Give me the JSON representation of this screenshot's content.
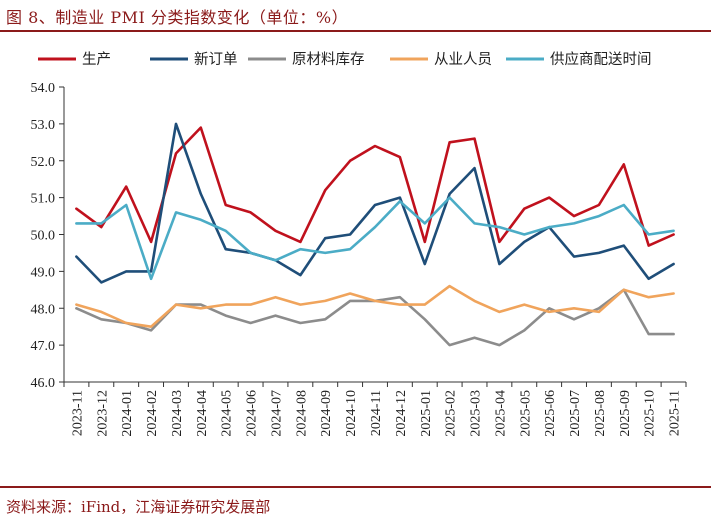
{
  "figure": {
    "title": "图 8、制造业 PMI 分类指数变化（单位：%）",
    "source": "资料来源：iFind，江海证券研究发展部"
  },
  "chart_data": {
    "type": "line",
    "title": "制造业 PMI 分类指数变化（单位：%）",
    "xlabel": "",
    "ylabel": "",
    "ylim": [
      46.0,
      54.0
    ],
    "yticks": [
      "54.0",
      "53.0",
      "52.0",
      "51.0",
      "50.0",
      "49.0",
      "48.0",
      "47.0",
      "46.0"
    ],
    "grid": false,
    "legend_position": "top",
    "categories": [
      "2023-11",
      "2023-12",
      "2024-01",
      "2024-02",
      "2024-03",
      "2024-04",
      "2024-05",
      "2024-06",
      "2024-07",
      "2024-08",
      "2024-09",
      "2024-10",
      "2024-11",
      "2024-12",
      "2025-01",
      "2025-02",
      "2025-03",
      "2025-04",
      "2025-05",
      "2025-06",
      "2025-07",
      "2025-08",
      "2025-09",
      "2025-10",
      "2025-11"
    ],
    "series": [
      {
        "name": "生产",
        "color": "#c0111d",
        "values": [
          50.7,
          50.2,
          51.3,
          49.8,
          52.2,
          52.9,
          50.8,
          50.6,
          50.1,
          49.8,
          51.2,
          52.0,
          52.4,
          52.1,
          49.8,
          52.5,
          52.6,
          49.8,
          50.7,
          51.0,
          50.5,
          50.8,
          51.9,
          49.7,
          50.0
        ]
      },
      {
        "name": "新订单",
        "color": "#1f4e79",
        "values": [
          49.4,
          48.7,
          49.0,
          49.0,
          53.0,
          51.1,
          49.6,
          49.5,
          49.3,
          48.9,
          49.9,
          50.0,
          50.8,
          51.0,
          49.2,
          51.1,
          51.8,
          49.2,
          49.8,
          50.2,
          49.4,
          49.5,
          49.7,
          48.8,
          49.2
        ]
      },
      {
        "name": "原材料库存",
        "color": "#8c8c8c",
        "values": [
          48.0,
          47.7,
          47.6,
          47.4,
          48.1,
          48.1,
          47.8,
          47.6,
          47.8,
          47.6,
          47.7,
          48.2,
          48.2,
          48.3,
          47.7,
          47.0,
          47.2,
          47.0,
          47.4,
          48.0,
          47.7,
          48.0,
          48.5,
          47.3,
          47.3
        ]
      },
      {
        "name": "从业人员",
        "color": "#f0a45c",
        "values": [
          48.1,
          47.9,
          47.6,
          47.5,
          48.1,
          48.0,
          48.1,
          48.1,
          48.3,
          48.1,
          48.2,
          48.4,
          48.2,
          48.1,
          48.1,
          48.6,
          48.2,
          47.9,
          48.1,
          47.9,
          48.0,
          47.9,
          48.5,
          48.3,
          48.4
        ]
      },
      {
        "name": "供应商配送时间",
        "color": "#4bacc6",
        "values": [
          50.3,
          50.3,
          50.8,
          48.8,
          50.6,
          50.4,
          50.1,
          49.5,
          49.3,
          49.6,
          49.5,
          49.6,
          50.2,
          50.9,
          50.3,
          51.0,
          50.3,
          50.2,
          50.0,
          50.2,
          50.3,
          50.5,
          50.8,
          50.0,
          50.1
        ]
      }
    ]
  }
}
